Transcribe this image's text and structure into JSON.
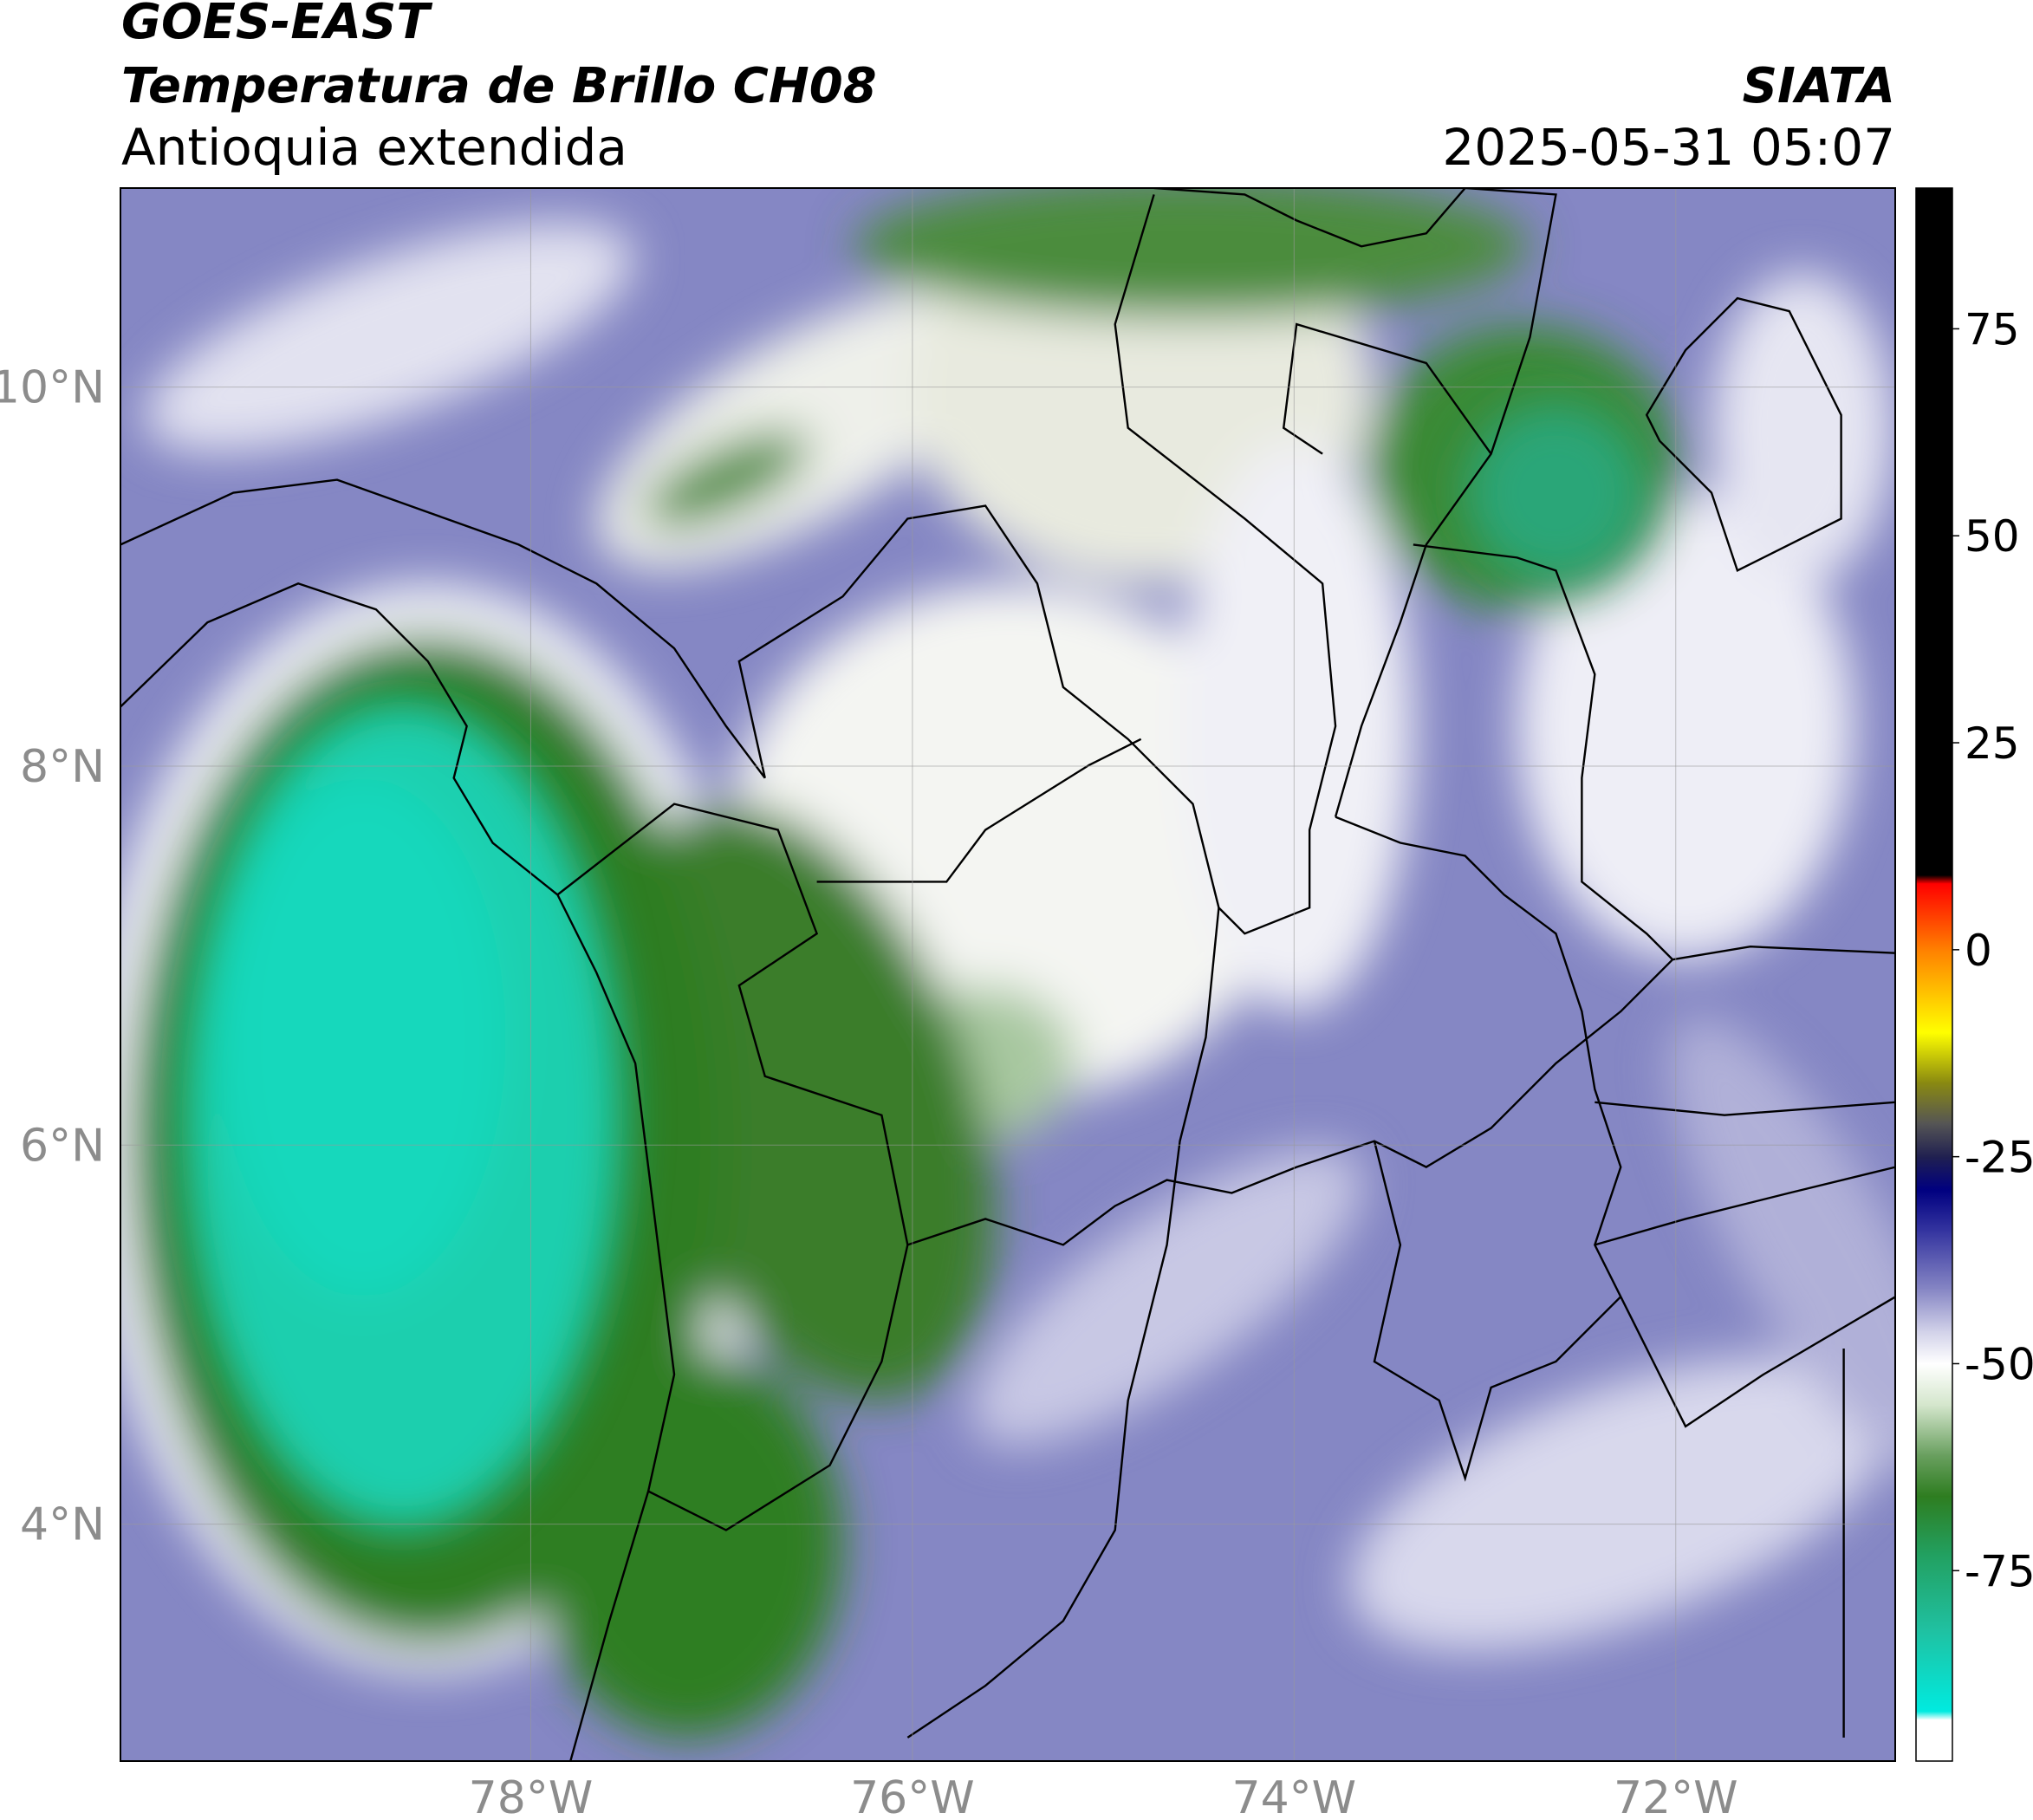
{
  "header": {
    "title": "GOES-EAST",
    "subtitle": "Temperatura de Brillo CH08",
    "region": "Antioquia extendida",
    "source": "SIATA",
    "datetime": "2025-05-31 05:07"
  },
  "map": {
    "lonlim": [
      -80.15,
      -70.85
    ],
    "latlim": [
      2.75,
      11.05
    ],
    "lonticks": [
      {
        "value": -78,
        "label": "78°W"
      },
      {
        "value": -76,
        "label": "76°W"
      },
      {
        "value": -74,
        "label": "74°W"
      },
      {
        "value": -72,
        "label": "72°W"
      }
    ],
    "latticks": [
      {
        "value": 4,
        "label": "4°N"
      },
      {
        "value": 6,
        "label": "6°N"
      },
      {
        "value": 8,
        "label": "8°N"
      },
      {
        "value": 10,
        "label": "10°N"
      }
    ],
    "grid": true
  },
  "colorbar": {
    "lim": [
      -98,
      92
    ],
    "ticks": [
      75,
      50,
      25,
      0,
      -25,
      -50,
      -75
    ],
    "stops": [
      {
        "value": 92,
        "color": "#000000"
      },
      {
        "value": 9,
        "color": "#000000"
      },
      {
        "value": 8,
        "color": "#ff0000"
      },
      {
        "value": 0,
        "color": "#ff8000"
      },
      {
        "value": -10,
        "color": "#ffff00"
      },
      {
        "value": -16,
        "color": "#8a8a10"
      },
      {
        "value": -21,
        "color": "#555555"
      },
      {
        "value": -25,
        "color": "#202050"
      },
      {
        "value": -29,
        "color": "#000080"
      },
      {
        "value": -34,
        "color": "#3535a0"
      },
      {
        "value": -41,
        "color": "#8686c4"
      },
      {
        "value": -46,
        "color": "#d0d0e8"
      },
      {
        "value": -50,
        "color": "#ffffff"
      },
      {
        "value": -55,
        "color": "#d4e6cc"
      },
      {
        "value": -61,
        "color": "#6aa060"
      },
      {
        "value": -66,
        "color": "#2e7d20"
      },
      {
        "value": -73,
        "color": "#22a060"
      },
      {
        "value": -82,
        "color": "#20c0a0"
      },
      {
        "value": -92,
        "color": "#00ebe0"
      },
      {
        "value": -93,
        "color": "#ffffff"
      },
      {
        "value": -98,
        "color": "#ffffff"
      }
    ]
  }
}
